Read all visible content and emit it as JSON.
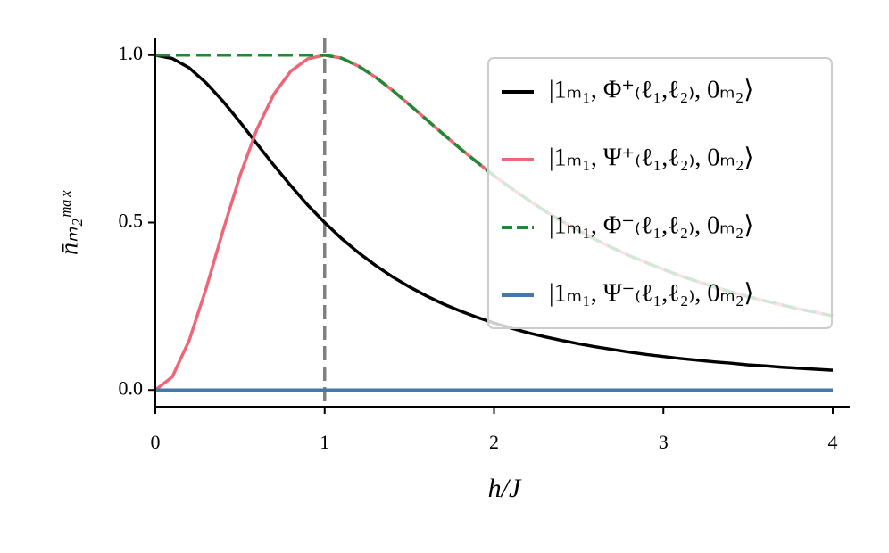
{
  "chart_data": {
    "type": "line",
    "xlabel": "h/J",
    "ylabel": "n̄ₘ₂ᵐᵃˣ",
    "x": [
      0,
      0.1,
      0.2,
      0.3,
      0.4,
      0.5,
      0.6,
      0.7,
      0.8,
      0.9,
      1,
      1.1,
      1.2,
      1.3,
      1.4,
      1.5,
      1.6,
      1.7,
      1.8,
      1.9,
      2,
      2.1,
      2.2,
      2.3,
      2.4,
      2.5,
      2.6,
      2.7,
      2.8,
      2.9,
      3,
      3.1,
      3.2,
      3.3,
      3.4,
      3.5,
      3.6,
      3.7,
      3.8,
      3.9,
      4
    ],
    "series": [
      {
        "name": "|1ₘ₁, Φ⁺₍ℓ₁,ℓ₂₎, 0ₘ₂⟩",
        "color": "#000000",
        "dash": false,
        "values": [
          1,
          0.99,
          0.962,
          0.917,
          0.862,
          0.8,
          0.735,
          0.671,
          0.61,
          0.552,
          0.5,
          0.452,
          0.41,
          0.372,
          0.338,
          0.308,
          0.281,
          0.257,
          0.236,
          0.217,
          0.2,
          0.185,
          0.171,
          0.159,
          0.148,
          0.138,
          0.129,
          0.121,
          0.113,
          0.106,
          0.1,
          0.094,
          0.089,
          0.084,
          0.08,
          0.075,
          0.072,
          0.068,
          0.065,
          0.062,
          0.059
        ]
      },
      {
        "name": "|1ₘ₁, Ψ⁺₍ℓ₁,ℓ₂₎, 0ₘ₂⟩",
        "color": "#ee6677",
        "dash": false,
        "values": [
          0,
          0.039,
          0.148,
          0.303,
          0.476,
          0.64,
          0.779,
          0.883,
          0.952,
          0.989,
          1,
          0.991,
          0.967,
          0.934,
          0.895,
          0.852,
          0.808,
          0.764,
          0.721,
          0.68,
          0.64,
          0.603,
          0.568,
          0.535,
          0.504,
          0.476,
          0.449,
          0.424,
          0.401,
          0.38,
          0.36,
          0.341,
          0.324,
          0.308,
          0.293,
          0.279,
          0.266,
          0.254,
          0.242,
          0.232,
          0.221
        ]
      },
      {
        "name": "|1ₘ₁, Φ⁻₍ℓ₁,ℓ₂₎, 0ₘ₂⟩",
        "color": "#228833",
        "dash": true,
        "values": [
          1,
          1,
          1,
          1,
          1,
          1,
          1,
          1,
          1,
          1,
          1,
          0.991,
          0.967,
          0.934,
          0.895,
          0.852,
          0.808,
          0.764,
          0.721,
          0.68,
          0.64,
          0.603,
          0.568,
          0.535,
          0.504,
          0.476,
          0.449,
          0.424,
          0.401,
          0.38,
          0.36,
          0.341,
          0.324,
          0.308,
          0.293,
          0.279,
          0.266,
          0.254,
          0.242,
          0.232,
          0.221
        ]
      },
      {
        "name": "|1ₘ₁, Ψ⁻₍ℓ₁,ℓ₂₎, 0ₘ₂⟩",
        "color": "#4477aa",
        "dash": false,
        "values": [
          0,
          0,
          0,
          0,
          0,
          0,
          0,
          0,
          0,
          0,
          0,
          0,
          0,
          0,
          0,
          0,
          0,
          0,
          0,
          0,
          0,
          0,
          0,
          0,
          0,
          0,
          0,
          0,
          0,
          0,
          0,
          0,
          0,
          0,
          0,
          0,
          0,
          0,
          0,
          0,
          0
        ]
      }
    ],
    "vline": 1,
    "vline_color": "#808080",
    "xlim": [
      0,
      4.1
    ],
    "ylim": [
      -0.05,
      1.05
    ],
    "xticks": [
      0,
      1,
      2,
      3,
      4
    ],
    "yticks": [
      {
        "value": 0,
        "label": "0.0"
      },
      {
        "value": 0.5,
        "label": "0.5"
      },
      {
        "value": 1,
        "label": "1.0"
      }
    ],
    "legend": "upper right"
  }
}
